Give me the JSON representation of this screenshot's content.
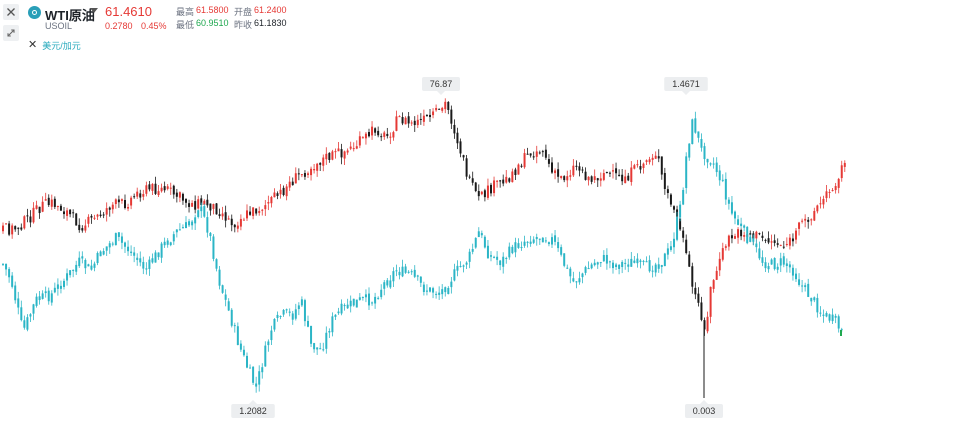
{
  "toolbar": {
    "close_icon": "close-icon",
    "shrink_icon": "collapse-arrows-icon"
  },
  "header": {
    "symbol_name": "WTI原油",
    "symbol_code": "USOIL",
    "price": "61.4610",
    "change": "0.2780",
    "change_pct": "0.45%",
    "high_label": "最高",
    "high_value": "61.5800",
    "open_label": "开盘",
    "open_value": "61.2400",
    "low_label": "最低",
    "low_value": "60.9510",
    "prev_close_label": "昨收",
    "prev_close_value": "61.1830"
  },
  "compare": {
    "label": "美元/加元"
  },
  "colors": {
    "up": "#e53935",
    "down": "#1a1a1a",
    "compare_series": "#2bb5c6",
    "low": "#1fa84f"
  },
  "chart_data": {
    "type": "candlestick",
    "series": [
      {
        "name": "WTI原油",
        "color_up": "#e53935",
        "color_down": "#1a1a1a",
        "path": [
          [
            0,
            230
          ],
          [
            15,
            228
          ],
          [
            28,
            218
          ],
          [
            40,
            206
          ],
          [
            52,
            203
          ],
          [
            66,
            212
          ],
          [
            80,
            226
          ],
          [
            95,
            218
          ],
          [
            110,
            205
          ],
          [
            125,
            203
          ],
          [
            138,
            192
          ],
          [
            152,
            188
          ],
          [
            166,
            190
          ],
          [
            178,
            197
          ],
          [
            190,
            204
          ],
          [
            205,
            203
          ],
          [
            218,
            210
          ],
          [
            232,
            224
          ],
          [
            245,
            215
          ],
          [
            262,
            206
          ],
          [
            278,
            195
          ],
          [
            290,
            182
          ],
          [
            305,
            170
          ],
          [
            320,
            160
          ],
          [
            335,
            154
          ],
          [
            348,
            150
          ],
          [
            362,
            140
          ],
          [
            375,
            128
          ],
          [
            385,
            138
          ],
          [
            398,
            118
          ],
          [
            410,
            124
          ],
          [
            425,
            120
          ],
          [
            438,
            112
          ],
          [
            445,
            103
          ],
          [
            452,
            125
          ],
          [
            460,
            152
          ],
          [
            468,
            182
          ],
          [
            478,
            200
          ],
          [
            490,
            188
          ],
          [
            505,
            180
          ],
          [
            518,
            165
          ],
          [
            530,
            152
          ],
          [
            542,
            150
          ],
          [
            552,
            175
          ],
          [
            562,
            178
          ],
          [
            575,
            165
          ],
          [
            590,
            180
          ],
          [
            605,
            172
          ],
          [
            620,
            180
          ],
          [
            635,
            170
          ],
          [
            648,
            158
          ],
          [
            656,
            152
          ],
          [
            662,
            185
          ],
          [
            672,
            208
          ],
          [
            680,
            230
          ],
          [
            686,
            262
          ],
          [
            692,
            290
          ],
          [
            700,
            312
          ],
          [
            705,
            335
          ],
          [
            710,
            285
          ],
          [
            718,
            265
          ],
          [
            726,
            240
          ],
          [
            740,
            232
          ],
          [
            755,
            236
          ],
          [
            768,
            240
          ],
          [
            780,
            245
          ],
          [
            790,
            242
          ],
          [
            800,
            225
          ],
          [
            812,
            212
          ],
          [
            822,
            200
          ],
          [
            832,
            186
          ],
          [
            840,
            170
          ],
          [
            846,
            162
          ]
        ],
        "callouts": [
          {
            "value": "76.87",
            "kind": "high"
          },
          {
            "value": "0.003",
            "kind": "low"
          }
        ]
      },
      {
        "name": "美元/加元",
        "color": "#2bb5c6",
        "path": [
          [
            0,
            260
          ],
          [
            10,
            280
          ],
          [
            22,
            332
          ],
          [
            35,
            300
          ],
          [
            50,
            295
          ],
          [
            65,
            278
          ],
          [
            78,
            262
          ],
          [
            90,
            270
          ],
          [
            100,
            252
          ],
          [
            115,
            238
          ],
          [
            130,
            252
          ],
          [
            145,
            270
          ],
          [
            160,
            248
          ],
          [
            175,
            232
          ],
          [
            188,
            225
          ],
          [
            198,
            205
          ],
          [
            208,
            232
          ],
          [
            218,
            280
          ],
          [
            228,
            312
          ],
          [
            238,
            345
          ],
          [
            248,
            372
          ],
          [
            255,
            388
          ],
          [
            262,
            360
          ],
          [
            270,
            330
          ],
          [
            280,
            315
          ],
          [
            292,
            315
          ],
          [
            300,
            300
          ],
          [
            310,
            345
          ],
          [
            320,
            350
          ],
          [
            330,
            322
          ],
          [
            340,
            310
          ],
          [
            350,
            305
          ],
          [
            360,
            300
          ],
          [
            372,
            300
          ],
          [
            382,
            285
          ],
          [
            395,
            270
          ],
          [
            410,
            275
          ],
          [
            425,
            290
          ],
          [
            440,
            292
          ],
          [
            455,
            272
          ],
          [
            468,
            258
          ],
          [
            478,
            232
          ],
          [
            488,
            255
          ],
          [
            500,
            262
          ],
          [
            512,
            248
          ],
          [
            525,
            240
          ],
          [
            540,
            236
          ],
          [
            552,
            240
          ],
          [
            562,
            262
          ],
          [
            572,
            282
          ],
          [
            585,
            270
          ],
          [
            600,
            258
          ],
          [
            615,
            265
          ],
          [
            630,
            262
          ],
          [
            645,
            268
          ],
          [
            660,
            262
          ],
          [
            670,
            248
          ],
          [
            680,
            205
          ],
          [
            686,
            150
          ],
          [
            692,
            120
          ],
          [
            700,
            150
          ],
          [
            712,
            162
          ],
          [
            722,
            185
          ],
          [
            730,
            212
          ],
          [
            742,
            232
          ],
          [
            752,
            245
          ],
          [
            762,
            262
          ],
          [
            772,
            265
          ],
          [
            782,
            262
          ],
          [
            792,
            270
          ],
          [
            800,
            285
          ],
          [
            812,
            300
          ],
          [
            822,
            315
          ],
          [
            832,
            320
          ],
          [
            842,
            333
          ]
        ],
        "callouts": [
          {
            "value": "1.4671",
            "kind": "high"
          },
          {
            "value": "1.2082",
            "kind": "low"
          }
        ]
      }
    ]
  }
}
